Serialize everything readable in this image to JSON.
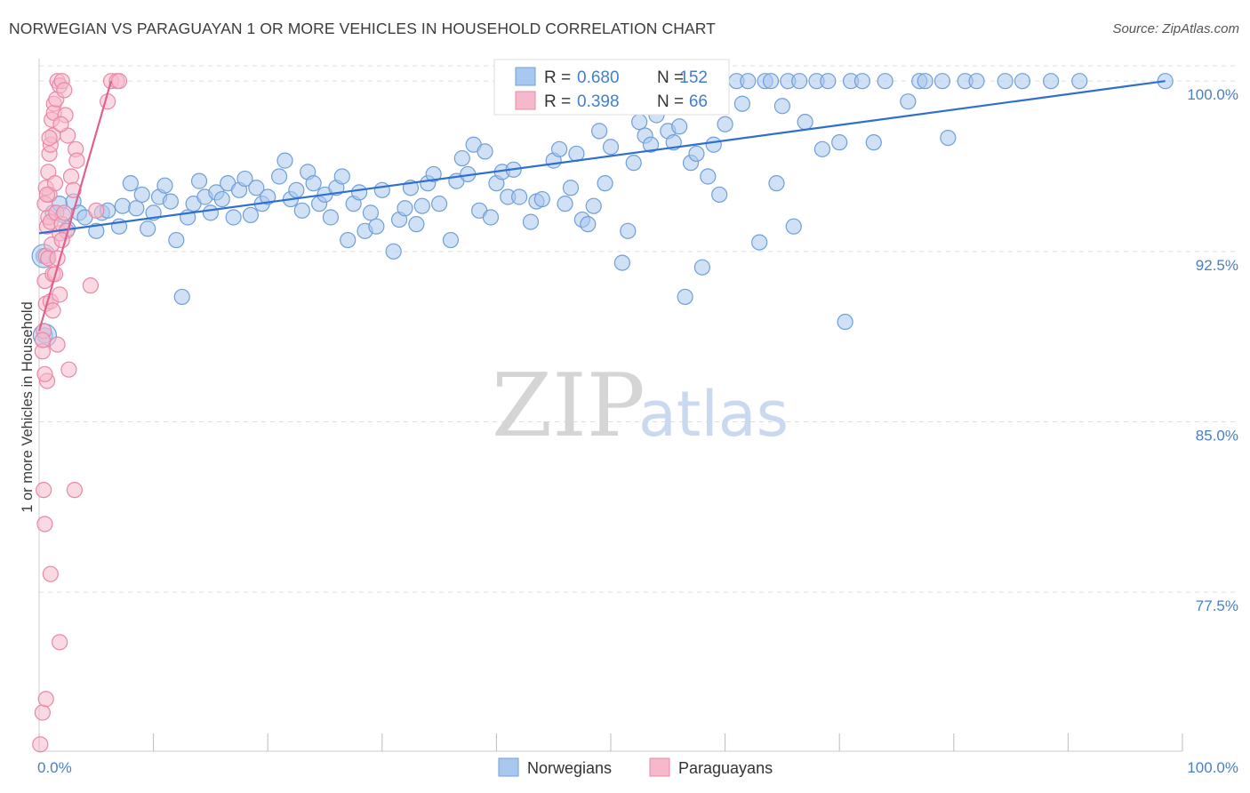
{
  "title": "NORWEGIAN VS PARAGUAYAN 1 OR MORE VEHICLES IN HOUSEHOLD CORRELATION CHART",
  "source": "Source: ZipAtlas.com",
  "watermark": {
    "zip": "ZIP",
    "atlas": "atlas"
  },
  "colors": {
    "blue_fill": "#a9c8ef",
    "blue_stroke": "#6f9fd8",
    "blue_line": "#2f6fcf",
    "pink_fill": "#f6b9cc",
    "pink_stroke": "#ea87a6",
    "pink_line": "#e0608e",
    "tick_text": "#4a7fc6",
    "grid": "#dddddd"
  },
  "legend": {
    "rows": [
      {
        "r_label": "R =",
        "r_value": "0.680",
        "n_label": "N =",
        "n_value": "152",
        "series": "Norwegians"
      },
      {
        "r_label": "R =",
        "r_value": "0.398",
        "n_label": "N =",
        "n_value": "66",
        "series": "Paraguayans"
      }
    ]
  },
  "bottom_legend": [
    "Norwegians",
    "Paraguayans"
  ],
  "chart_data": {
    "type": "scatter",
    "title": "NORWEGIAN VS PARAGUAYAN 1 OR MORE VEHICLES IN HOUSEHOLD CORRELATION CHART",
    "xlabel": "",
    "ylabel": "1 or more Vehicles in Household",
    "xlim": [
      0,
      100
    ],
    "ylim": [
      70.5,
      100.75
    ],
    "x_tick_labels": [
      "0.0%",
      "100.0%"
    ],
    "y_ticks": [
      77.5,
      85.0,
      92.5,
      100.0
    ],
    "y_tick_labels": [
      "77.5%",
      "85.0%",
      "92.5%",
      "100.0%"
    ],
    "grid": true,
    "series": [
      {
        "name": "Norwegians",
        "color": "#a9c8ef",
        "R": 0.68,
        "N": 152,
        "trend": {
          "x": [
            0,
            98.5
          ],
          "y": [
            93.3,
            100.0
          ]
        },
        "points": [
          [
            0.4,
            92.3
          ],
          [
            0.5,
            88.8
          ],
          [
            1.2,
            94.2
          ],
          [
            1.8,
            94.6
          ],
          [
            2.1,
            94.1
          ],
          [
            2.5,
            93.5
          ],
          [
            3.0,
            94.7
          ],
          [
            3.5,
            94.2
          ],
          [
            4.0,
            94.0
          ],
          [
            5.0,
            93.4
          ],
          [
            5.5,
            94.2
          ],
          [
            6.0,
            94.3
          ],
          [
            7.0,
            93.6
          ],
          [
            7.3,
            94.5
          ],
          [
            8.0,
            95.5
          ],
          [
            8.5,
            94.4
          ],
          [
            9.0,
            95.0
          ],
          [
            9.5,
            93.5
          ],
          [
            10.0,
            94.2
          ],
          [
            10.5,
            94.9
          ],
          [
            11.0,
            95.4
          ],
          [
            11.5,
            94.7
          ],
          [
            12.0,
            93.0
          ],
          [
            12.5,
            90.5
          ],
          [
            13.0,
            94.0
          ],
          [
            13.5,
            94.6
          ],
          [
            14.0,
            95.6
          ],
          [
            14.5,
            94.9
          ],
          [
            15.0,
            94.2
          ],
          [
            15.5,
            95.1
          ],
          [
            16.0,
            94.8
          ],
          [
            16.5,
            95.5
          ],
          [
            17.0,
            94.0
          ],
          [
            17.5,
            95.2
          ],
          [
            18.0,
            95.7
          ],
          [
            18.5,
            94.1
          ],
          [
            19.0,
            95.3
          ],
          [
            19.5,
            94.6
          ],
          [
            20.0,
            94.9
          ],
          [
            21.0,
            95.8
          ],
          [
            21.5,
            96.5
          ],
          [
            22.0,
            94.8
          ],
          [
            22.5,
            95.2
          ],
          [
            23.0,
            94.3
          ],
          [
            23.5,
            96.0
          ],
          [
            24.0,
            95.5
          ],
          [
            24.5,
            94.6
          ],
          [
            25.0,
            95.0
          ],
          [
            25.5,
            94.0
          ],
          [
            26.0,
            95.3
          ],
          [
            26.5,
            95.8
          ],
          [
            27.0,
            93.0
          ],
          [
            27.5,
            94.6
          ],
          [
            28.0,
            95.1
          ],
          [
            28.5,
            93.4
          ],
          [
            29.0,
            94.2
          ],
          [
            29.5,
            93.6
          ],
          [
            30.0,
            95.2
          ],
          [
            31.0,
            92.5
          ],
          [
            31.5,
            93.9
          ],
          [
            32.0,
            94.4
          ],
          [
            32.5,
            95.3
          ],
          [
            33.0,
            93.7
          ],
          [
            33.5,
            94.5
          ],
          [
            34.0,
            95.5
          ],
          [
            34.5,
            95.9
          ],
          [
            35.0,
            94.6
          ],
          [
            36.0,
            93.0
          ],
          [
            36.5,
            95.6
          ],
          [
            37.0,
            96.6
          ],
          [
            37.5,
            95.9
          ],
          [
            38.0,
            97.2
          ],
          [
            38.5,
            94.3
          ],
          [
            39.0,
            96.9
          ],
          [
            39.5,
            94.0
          ],
          [
            40.0,
            95.5
          ],
          [
            40.5,
            96.0
          ],
          [
            41.0,
            94.9
          ],
          [
            41.5,
            96.1
          ],
          [
            42.0,
            94.9
          ],
          [
            43.0,
            93.8
          ],
          [
            43.5,
            94.7
          ],
          [
            44.0,
            94.8
          ],
          [
            45.0,
            96.5
          ],
          [
            45.5,
            97.0
          ],
          [
            46.0,
            94.6
          ],
          [
            46.5,
            95.3
          ],
          [
            47.0,
            96.8
          ],
          [
            47.5,
            93.9
          ],
          [
            48.0,
            93.7
          ],
          [
            48.5,
            94.5
          ],
          [
            49.0,
            97.8
          ],
          [
            49.5,
            95.5
          ],
          [
            50.0,
            97.1
          ],
          [
            51.0,
            92.0
          ],
          [
            51.5,
            93.4
          ],
          [
            52.0,
            96.4
          ],
          [
            52.5,
            98.2
          ],
          [
            53.0,
            97.6
          ],
          [
            53.5,
            97.2
          ],
          [
            54.0,
            98.5
          ],
          [
            54.5,
            99.3
          ],
          [
            55.0,
            97.8
          ],
          [
            55.5,
            97.3
          ],
          [
            56.0,
            98.0
          ],
          [
            56.5,
            90.5
          ],
          [
            57.0,
            96.4
          ],
          [
            57.5,
            96.8
          ],
          [
            58.0,
            91.8
          ],
          [
            58.5,
            95.8
          ],
          [
            59.0,
            97.2
          ],
          [
            59.5,
            95.0
          ],
          [
            60.0,
            98.1
          ],
          [
            61.0,
            100.0
          ],
          [
            61.5,
            99.0
          ],
          [
            62.0,
            100.0
          ],
          [
            63.0,
            92.9
          ],
          [
            63.5,
            100.0
          ],
          [
            64.0,
            100.0
          ],
          [
            64.5,
            95.5
          ],
          [
            65.0,
            98.9
          ],
          [
            65.5,
            100.0
          ],
          [
            66.0,
            93.6
          ],
          [
            66.5,
            100.0
          ],
          [
            67.0,
            98.2
          ],
          [
            68.0,
            100.0
          ],
          [
            68.5,
            97.0
          ],
          [
            69.0,
            100.0
          ],
          [
            70.0,
            97.3
          ],
          [
            70.5,
            89.4
          ],
          [
            71.0,
            100.0
          ],
          [
            72.0,
            100.0
          ],
          [
            73.0,
            97.3
          ],
          [
            74.0,
            100.0
          ],
          [
            76.0,
            99.1
          ],
          [
            77.0,
            100.0
          ],
          [
            77.5,
            100.0
          ],
          [
            79.0,
            100.0
          ],
          [
            79.5,
            97.5
          ],
          [
            81.0,
            100.0
          ],
          [
            82.0,
            100.0
          ],
          [
            84.5,
            100.0
          ],
          [
            86.0,
            100.0
          ],
          [
            88.5,
            100.0
          ],
          [
            91.0,
            100.0
          ],
          [
            98.5,
            100.0
          ]
        ]
      },
      {
        "name": "Paraguayans",
        "color": "#f6b9cc",
        "R": 0.398,
        "N": 66,
        "trend": {
          "x": [
            0,
            6.3
          ],
          "y": [
            89.0,
            100.0
          ]
        },
        "points": [
          [
            0.1,
            70.8
          ],
          [
            0.3,
            72.2
          ],
          [
            0.5,
            80.5
          ],
          [
            0.6,
            72.8
          ],
          [
            0.7,
            86.8
          ],
          [
            0.3,
            88.1
          ],
          [
            0.4,
            89.0
          ],
          [
            0.5,
            87.1
          ],
          [
            0.6,
            90.2
          ],
          [
            0.3,
            88.6
          ],
          [
            1.0,
            78.3
          ],
          [
            0.4,
            82.0
          ],
          [
            0.5,
            91.2
          ],
          [
            0.6,
            92.3
          ],
          [
            0.7,
            93.6
          ],
          [
            0.8,
            94.0
          ],
          [
            0.9,
            95.0
          ],
          [
            1.0,
            93.8
          ],
          [
            1.1,
            92.8
          ],
          [
            1.2,
            91.5
          ],
          [
            0.5,
            94.6
          ],
          [
            0.6,
            95.3
          ],
          [
            0.8,
            96.0
          ],
          [
            0.9,
            96.8
          ],
          [
            1.0,
            97.2
          ],
          [
            1.1,
            98.3
          ],
          [
            1.2,
            97.6
          ],
          [
            1.3,
            99.0
          ],
          [
            1.4,
            95.5
          ],
          [
            1.5,
            94.2
          ],
          [
            0.7,
            95.0
          ],
          [
            0.8,
            92.2
          ],
          [
            1.0,
            90.3
          ],
          [
            1.2,
            89.9
          ],
          [
            1.4,
            91.5
          ],
          [
            1.6,
            92.2
          ],
          [
            1.8,
            93.3
          ],
          [
            2.0,
            93.7
          ],
          [
            2.2,
            94.2
          ],
          [
            2.4,
            93.4
          ],
          [
            1.3,
            98.6
          ],
          [
            1.5,
            99.2
          ],
          [
            1.6,
            100.0
          ],
          [
            1.8,
            99.8
          ],
          [
            2.0,
            100.0
          ],
          [
            2.2,
            99.6
          ],
          [
            2.5,
            97.6
          ],
          [
            2.8,
            95.8
          ],
          [
            3.0,
            95.2
          ],
          [
            3.2,
            97.0
          ],
          [
            1.6,
            88.4
          ],
          [
            1.8,
            90.6
          ],
          [
            2.6,
            87.3
          ],
          [
            3.1,
            82.0
          ],
          [
            1.8,
            75.3
          ],
          [
            2.0,
            93.0
          ],
          [
            3.3,
            96.5
          ],
          [
            4.5,
            91.0
          ],
          [
            5.0,
            94.3
          ],
          [
            6.0,
            99.1
          ],
          [
            6.3,
            100.0
          ],
          [
            6.8,
            100.0
          ],
          [
            7.0,
            100.0
          ],
          [
            2.3,
            98.5
          ],
          [
            1.9,
            98.1
          ],
          [
            0.9,
            97.5
          ]
        ]
      }
    ]
  }
}
